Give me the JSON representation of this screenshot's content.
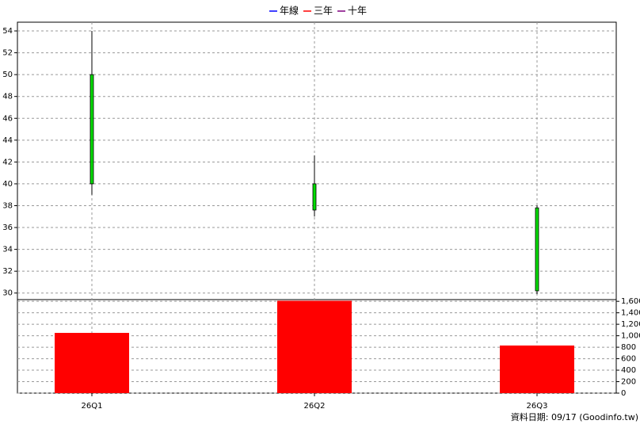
{
  "chart_data": {
    "type": "candlestick",
    "legend": [
      {
        "name": "年線",
        "color": "#0000ff"
      },
      {
        "name": "三年",
        "color": "#ff0000"
      },
      {
        "name": "十年",
        "color": "#800080"
      }
    ],
    "categories": [
      "26Q1",
      "26Q2",
      "26Q3"
    ],
    "open": [
      50,
      40,
      37.8
    ],
    "high": [
      54,
      42.6,
      38
    ],
    "low": [
      39,
      37,
      29.9
    ],
    "close": [
      40,
      37.6,
      30.2
    ],
    "candle_color": "#00dd00",
    "ylim": [
      29.4,
      54.8
    ],
    "yticks": [
      30,
      32,
      34,
      36,
      38,
      40,
      42,
      44,
      46,
      48,
      50,
      52,
      54
    ],
    "volume": {
      "values": [
        1050,
        1610,
        830
      ],
      "color": "#ff0000",
      "y2lim": [
        0,
        1630
      ],
      "y2ticks": [
        0,
        200,
        400,
        600,
        800,
        {
          "value": 1000,
          "label": "1,000"
        },
        {
          "value": 1200,
          "label": "1,200"
        },
        {
          "value": 1400,
          "label": "1,400"
        },
        {
          "value": 1600,
          "label": "1,600"
        }
      ]
    },
    "grid": true,
    "footer": "資料日期: 09/17  (Goodinfo.tw)"
  }
}
